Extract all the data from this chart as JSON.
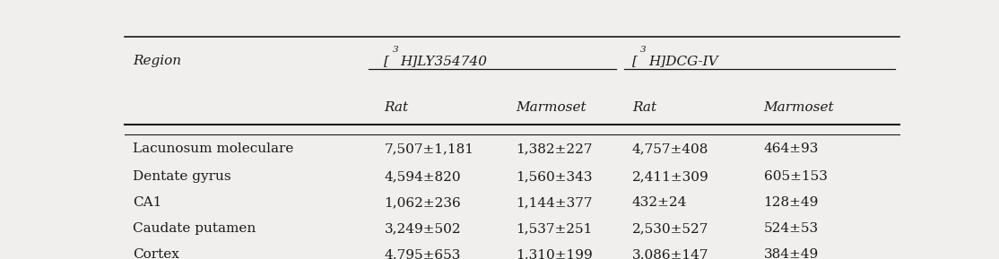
{
  "col_headers_sub": [
    "Rat",
    "Marmoset",
    "Rat",
    "Marmoset"
  ],
  "rows": [
    [
      "Lacunosum moleculare",
      "7,507±1,181",
      "1,382±227",
      "4,757±408",
      "464±93"
    ],
    [
      "Dentate gyrus",
      "4,594±820",
      "1,560±343",
      "2,411±309",
      "605±153"
    ],
    [
      "CA1",
      "1,062±236",
      "1,144±377",
      "432±24",
      "128±49"
    ],
    [
      "Caudate putamen",
      "3,249±502",
      "1,537±251",
      "2,530±527",
      "524±53"
    ],
    [
      "Cortex",
      "4,795±653",
      "1,310±199",
      "3,086±147",
      "384±49"
    ]
  ],
  "background_color": "#f0efed",
  "text_color": "#1a1a1a",
  "font_size": 11
}
